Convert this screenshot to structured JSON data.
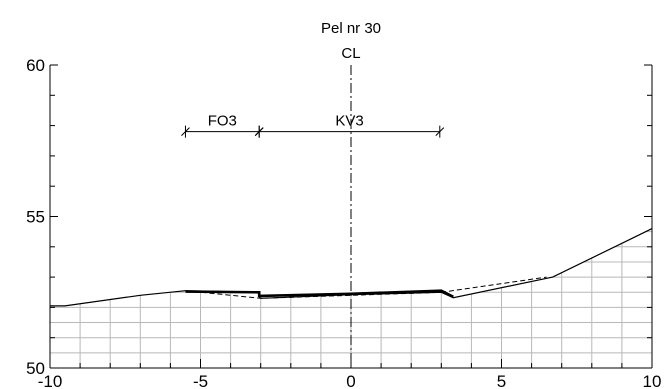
{
  "chart_data": {
    "type": "line",
    "title": "Pel nr 30",
    "centerline_label": "CL",
    "xlim": [
      -10,
      10
    ],
    "ylim": [
      50,
      60
    ],
    "xticks": [
      -10,
      -5,
      0,
      5,
      10
    ],
    "xtick_labels": [
      "-10",
      "-5",
      "0",
      "5",
      "10"
    ],
    "yticks": [
      50,
      55,
      60
    ],
    "ytick_labels": [
      "50",
      "55",
      "60"
    ],
    "grid_region": "below terrain",
    "grid_x_step": 1,
    "grid_y_step": 0.5,
    "segments": [
      {
        "label": "FO3",
        "x_start": -5.5,
        "x_end": -3.05,
        "y": 57.8
      },
      {
        "label": "KV3",
        "x_start": -3.05,
        "x_end": 2.95,
        "y": 57.8
      }
    ],
    "series": [
      {
        "style": "solid",
        "points": [
          [
            -10,
            52.05
          ],
          [
            -9.5,
            52.05
          ],
          [
            -7,
            52.4
          ],
          [
            -5.5,
            52.55
          ],
          [
            -3.05,
            52.5
          ],
          [
            -3.05,
            52.35
          ],
          [
            -3.0,
            52.3
          ],
          [
            0,
            52.42
          ],
          [
            3.0,
            52.5
          ],
          [
            3.4,
            52.32
          ],
          [
            6.7,
            53.0
          ],
          [
            10,
            54.6
          ]
        ]
      },
      {
        "style": "dashed",
        "points": [
          [
            -5.5,
            52.55
          ],
          [
            -3.0,
            52.3
          ],
          [
            3.0,
            52.5
          ],
          [
            6.5,
            53.0
          ]
        ]
      },
      {
        "style": "bold",
        "points": [
          [
            -5.5,
            52.52
          ],
          [
            -3.05,
            52.5
          ],
          [
            -3.05,
            52.38
          ],
          [
            0,
            52.45
          ],
          [
            3.0,
            52.55
          ],
          [
            3.4,
            52.35
          ]
        ]
      }
    ]
  }
}
